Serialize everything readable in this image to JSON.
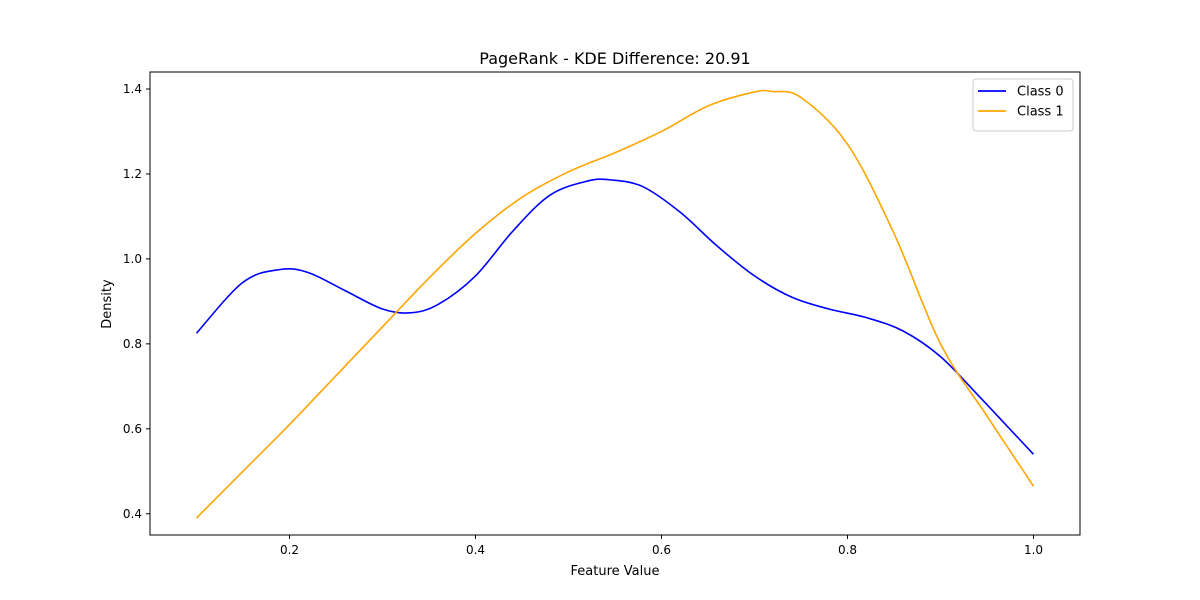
{
  "chart_data": {
    "type": "line",
    "title": "PageRank - KDE Difference: 20.91",
    "xlabel": "Feature Value",
    "ylabel": "Density",
    "xlim": [
      0.05,
      1.05
    ],
    "ylim": [
      0.35,
      1.44
    ],
    "xticks": [
      {
        "value": 0.2,
        "label": "0.2"
      },
      {
        "value": 0.4,
        "label": "0.4"
      },
      {
        "value": 0.6,
        "label": "0.6"
      },
      {
        "value": 0.8,
        "label": "0.8"
      },
      {
        "value": 1.0,
        "label": "1.0"
      }
    ],
    "yticks": [
      {
        "value": 0.4,
        "label": "0.4"
      },
      {
        "value": 0.6,
        "label": "0.6"
      },
      {
        "value": 0.8,
        "label": "0.8"
      },
      {
        "value": 1.0,
        "label": "1.0"
      },
      {
        "value": 1.2,
        "label": "1.2"
      },
      {
        "value": 1.4,
        "label": "1.4"
      }
    ],
    "grid": false,
    "legend_position": "top-right",
    "series": [
      {
        "name": "Class 0",
        "color": "#0000ff",
        "x": [
          0.1,
          0.15,
          0.19,
          0.22,
          0.26,
          0.3,
          0.33,
          0.36,
          0.4,
          0.44,
          0.48,
          0.52,
          0.545,
          0.58,
          0.62,
          0.66,
          0.7,
          0.74,
          0.78,
          0.82,
          0.86,
          0.9,
          0.94,
          0.97,
          1.0
        ],
        "y": [
          0.825,
          0.945,
          0.975,
          0.968,
          0.925,
          0.882,
          0.873,
          0.893,
          0.96,
          1.065,
          1.15,
          1.183,
          1.186,
          1.17,
          1.11,
          1.03,
          0.96,
          0.91,
          0.882,
          0.862,
          0.83,
          0.77,
          0.68,
          0.61,
          0.54
        ]
      },
      {
        "name": "Class 1",
        "color": "#ffa500",
        "x": [
          0.1,
          0.15,
          0.2,
          0.25,
          0.3,
          0.35,
          0.4,
          0.45,
          0.5,
          0.55,
          0.6,
          0.65,
          0.7,
          0.72,
          0.75,
          0.8,
          0.85,
          0.9,
          0.95,
          1.0
        ],
        "y": [
          0.39,
          0.5,
          0.61,
          0.725,
          0.84,
          0.955,
          1.06,
          1.145,
          1.205,
          1.25,
          1.3,
          1.36,
          1.393,
          1.394,
          1.38,
          1.27,
          1.06,
          0.8,
          0.63,
          0.465
        ]
      }
    ]
  }
}
